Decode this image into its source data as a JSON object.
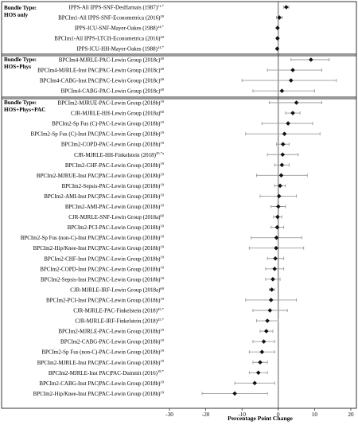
{
  "chart_data": {
    "type": "forest",
    "xlabel": "Percentage Point Change",
    "xlim": [
      -30,
      20
    ],
    "x_ticks": [
      "-30",
      "-20",
      "-10",
      "0",
      "10",
      "20"
    ],
    "x_tick_values": [
      -30,
      -20,
      -10,
      0,
      10,
      20
    ],
    "reference_line": 0,
    "marker": "diamond",
    "colors": {
      "marker": "#111111",
      "ci": "#9a9a9a",
      "border": "#333333",
      "ref": "#333333"
    },
    "groups": [
      {
        "label_lines": [
          "Bundle Type:",
          "HOS only"
        ],
        "rows": [
          {
            "label": "IPPS-All IPPS-SNF-DesHarnais (1987)",
            "sup": "11,*",
            "est": 2.2,
            "lo": 1.5,
            "hi": 2.9
          },
          {
            "label": "BPCIm1-All IPPS-SNF-Econometrica (2016)",
            "sup": "20",
            "est": 0.3,
            "lo": -0.5,
            "hi": 1.1
          },
          {
            "label": "IPPS-ICU-SNF-Mayer-Oakes (1988)",
            "sup": "14,*",
            "est": -0.2,
            "lo": -0.3,
            "hi": -0.1
          },
          {
            "label": "BPCIm1-All IPPS-LTCH-Econometrica (2016)",
            "sup": "20",
            "est": -0.2,
            "lo": -0.5,
            "hi": 0.1
          },
          {
            "label": "IPPS-ICU-HH-Mayer-Oakes (1988)",
            "sup": "14,*",
            "est": -0.3,
            "lo": -0.4,
            "hi": -0.2
          }
        ]
      },
      {
        "label_lines": [
          "Bundle Type:",
          "HOS+Phys"
        ],
        "rows": [
          {
            "label": "BPCIm4-MJRLE-PAC-Lewin Group (2018c)",
            "sup": "40",
            "est": 9.0,
            "lo": 3.5,
            "hi": 14.0
          },
          {
            "label": "BPCIm4-MJRLE-Inst PAC|PAC-Lewin Group (2018c)",
            "sup": "40",
            "est": 4.0,
            "lo": -3.0,
            "hi": 12.0
          },
          {
            "label": "BPCIm4-CABG-Inst PAC|PAC-Lewin Group (2018c)",
            "sup": "40",
            "est": 3.5,
            "lo": -10.0,
            "hi": 16.0
          },
          {
            "label": "BPCIm4-CABG-PAC-Lewin Group (2018c)",
            "sup": "40",
            "est": 1.0,
            "lo": -7.0,
            "hi": 10.0
          }
        ]
      },
      {
        "label_lines": [
          "Bundle Type:",
          "HOS+Phys+PAC"
        ],
        "rows": [
          {
            "label": "BPCIm2-MJRUE-PAC-Lewin Group (2018b)",
            "sup": "19",
            "est": 5.0,
            "lo": -2.5,
            "hi": 12.0
          },
          {
            "label": "CJR-MJRLE-HH-Lewin Group (2018a)",
            "sup": "60",
            "est": 4.0,
            "lo": 2.0,
            "hi": 6.0
          },
          {
            "label": "BPCIm2-Sp Fus (C)-PAC-Lewin Group (2018b)",
            "sup": "19",
            "est": 2.7,
            "lo": -4.5,
            "hi": 9.5
          },
          {
            "label": "BPCIm2-Sp Fus (C)-Inst PAC|PAC-Lewin Group (2018b)",
            "sup": "19",
            "est": 1.7,
            "lo": -9.0,
            "hi": 11.5
          },
          {
            "label": "BPCIm2-COPD-PAC-Lewin Group (2018b)",
            "sup": "19",
            "est": 1.3,
            "lo": -0.5,
            "hi": 3.0
          },
          {
            "label": "CJR-MJRLE-HH-Finkelstein (2018)",
            "sup": "45,*a",
            "est": 1.2,
            "lo": -3.0,
            "hi": 5.5
          },
          {
            "label": "BPCIm2-CHF-PAC-Lewin Group (2018b)",
            "sup": "19",
            "est": 1.0,
            "lo": -1.0,
            "hi": 3.0
          },
          {
            "label": "BPCIm2-MJRUE-Inst PAC|PAC-Lewin Group (2018b)",
            "sup": "19",
            "est": 0.8,
            "lo": -6.0,
            "hi": 8.0
          },
          {
            "label": "BPCIm2-Sepsis-PAC-Lewin Group (2018b)",
            "sup": "19",
            "est": 0.5,
            "lo": -1.0,
            "hi": 2.0
          },
          {
            "label": "BPCIm2-AMI-Inst PAC|PAC-Lewin Group (2018b)",
            "sup": "19",
            "est": 0.2,
            "lo": -5.0,
            "hi": 5.0
          },
          {
            "label": "BPCIm2-AMI-PAC-Lewin Group (2018b)",
            "sup": "19",
            "est": 0.0,
            "lo": -2.0,
            "hi": 2.0
          },
          {
            "label": "CJR-MJRLE-SNF-Lewin Group (2018a)",
            "sup": "60",
            "est": -0.2,
            "lo": -1.3,
            "hi": 1.0
          },
          {
            "label": "BPCIm2-PCI-PAC-Lewin Group (2018b)",
            "sup": "19",
            "est": -0.3,
            "lo": -2.0,
            "hi": 1.5
          },
          {
            "label": "BPCIm2-Sp Fus (non-C)-Inst PAC|PAC-Lewin Group (2018b)",
            "sup": "19",
            "est": -0.5,
            "lo": -7.5,
            "hi": 6.5
          },
          {
            "label": "BPCIm2-Hip/Knee-Inst PAC|PAC-Lewin Group (2018b)",
            "sup": "19",
            "est": -0.6,
            "lo": -8.0,
            "hi": 7.0
          },
          {
            "label": "BPCIm2-CHF-Inst PAC|PAC-Lewin Group (2018b)",
            "sup": "19",
            "est": -0.8,
            "lo": -3.0,
            "hi": 1.5
          },
          {
            "label": "BPCIm2-COPD-Inst PAC|PAC-Lewin Group (2018b)",
            "sup": "19",
            "est": -1.0,
            "lo": -3.5,
            "hi": 1.5
          },
          {
            "label": "BPCIm2-Sepsis-Inst PAC|PAC-Lewin Group (2018b)",
            "sup": "19",
            "est": -1.5,
            "lo": -3.5,
            "hi": 0.5
          },
          {
            "label": "CJR-MJRLE-IRF-Lewin Group (2018a)",
            "sup": "60",
            "est": -1.8,
            "lo": -2.5,
            "hi": -1.0
          },
          {
            "label": "BPCIm2-PCI-Inst PAC|PAC-Lewin Group (2018b)",
            "sup": "19",
            "est": -2.0,
            "lo": -9.0,
            "hi": 5.0
          },
          {
            "label": "CJR-MJRLE-PAC-Finkelstein (2018)",
            "sup": "45,*",
            "est": -2.3,
            "lo": -7.0,
            "hi": 2.5
          },
          {
            "label": "CJR-MJRLE-IRF-Finkelstein (2018)",
            "sup": "45,*",
            "est": -3.0,
            "lo": -6.0,
            "hi": 0.0
          },
          {
            "label": "BPCIm2-MJRLE-PAC-Lewin Group (2018b)",
            "sup": "19",
            "est": -3.3,
            "lo": -5.0,
            "hi": -1.5
          },
          {
            "label": "BPCIm2-CABG-PAC-Lewin Group (2018b)",
            "sup": "19",
            "est": -4.0,
            "lo": -7.0,
            "hi": -1.0
          },
          {
            "label": "BPCIm2-Sp Fus (non-C)-PAC-Lewin Group (2018b)",
            "sup": "19",
            "est": -4.5,
            "lo": -8.0,
            "hi": -1.0
          },
          {
            "label": "BPCIm2-MJRLE-Inst PAC|PAC-Lewin Group (2018b)",
            "sup": "19",
            "est": -5.0,
            "lo": -7.0,
            "hi": -3.0
          },
          {
            "label": "BPCIm2-MJRLE-Inst PAC|PAC-Dummit (2016)",
            "sup": "18,*",
            "est": -5.5,
            "lo": -8.0,
            "hi": -3.0
          },
          {
            "label": "BPCIm2-CABG-Inst PAC|PAC-Lewin Group (2018b)",
            "sup": "19",
            "est": -6.5,
            "lo": -12.0,
            "hi": -1.0
          },
          {
            "label": "BPCIm2-Hip/Knee-Inst PAC|PAC-Lewin Group (2018b)",
            "sup": "19",
            "est": -12.0,
            "lo": -21.0,
            "hi": -3.0
          }
        ]
      }
    ]
  }
}
